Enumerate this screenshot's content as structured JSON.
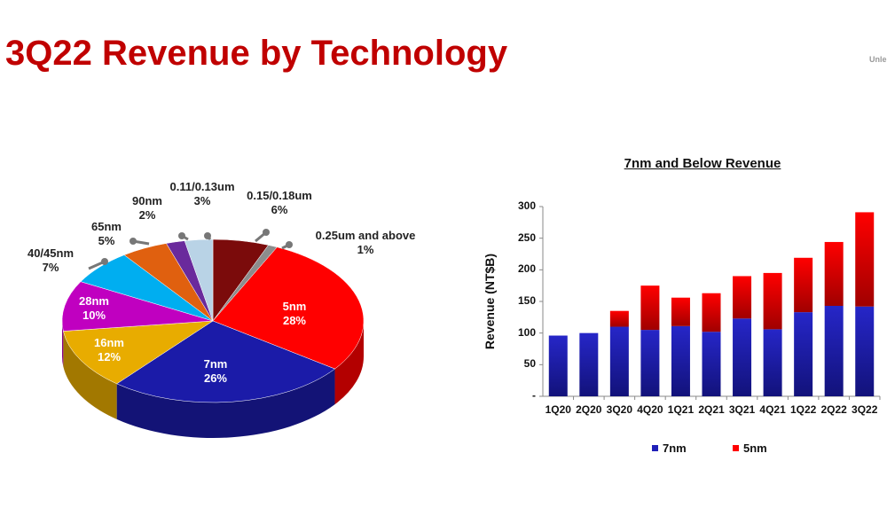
{
  "page": {
    "title": "3Q22 Revenue by Technology",
    "corner_text": "Unle"
  },
  "chart_data": [
    {
      "type": "pie",
      "style": "3d",
      "slices": [
        {
          "label": "0.15/0.18um",
          "value": 6,
          "pct": "6%",
          "color": "#7b0b0b"
        },
        {
          "label": "0.25um and above",
          "value": 1,
          "pct": "1%",
          "color": "#8c8c8c"
        },
        {
          "label": "5nm",
          "value": 28,
          "pct": "28%",
          "color": "#ff0000"
        },
        {
          "label": "7nm",
          "value": 26,
          "pct": "26%",
          "color": "#1b1ba8"
        },
        {
          "label": "16nm",
          "value": 12,
          "pct": "12%",
          "color": "#e8ac00"
        },
        {
          "label": "28nm",
          "value": 10,
          "pct": "10%",
          "color": "#c000c0"
        },
        {
          "label": "40/45nm",
          "value": 7,
          "pct": "7%",
          "color": "#00aef0"
        },
        {
          "label": "65nm",
          "value": 5,
          "pct": "5%",
          "color": "#e0600f"
        },
        {
          "label": "90nm",
          "value": 2,
          "pct": "2%",
          "color": "#6a2a9c"
        },
        {
          "label": "0.11/0.13um",
          "value": 3,
          "pct": "3%",
          "color": "#b9d3e6"
        }
      ]
    },
    {
      "type": "bar",
      "stacked": true,
      "title": "7nm and Below Revenue",
      "ylabel": "Revenue (NT$B)",
      "ylim": [
        0,
        300
      ],
      "yticks": [
        "-",
        "50",
        "100",
        "150",
        "200",
        "250",
        "300"
      ],
      "categories": [
        "1Q20",
        "2Q20",
        "3Q20",
        "4Q20",
        "1Q21",
        "2Q21",
        "3Q21",
        "4Q21",
        "1Q22",
        "2Q22",
        "3Q22"
      ],
      "series": [
        {
          "name": "7nm",
          "color": "#1f1fb8",
          "values": [
            96,
            100,
            110,
            105,
            111,
            102,
            123,
            106,
            133,
            143,
            142
          ]
        },
        {
          "name": "5nm",
          "color": "#ff0000",
          "values": [
            0,
            0,
            25,
            70,
            45,
            61,
            67,
            89,
            86,
            101,
            149
          ]
        }
      ],
      "legend": "bottom",
      "grid": false
    }
  ]
}
